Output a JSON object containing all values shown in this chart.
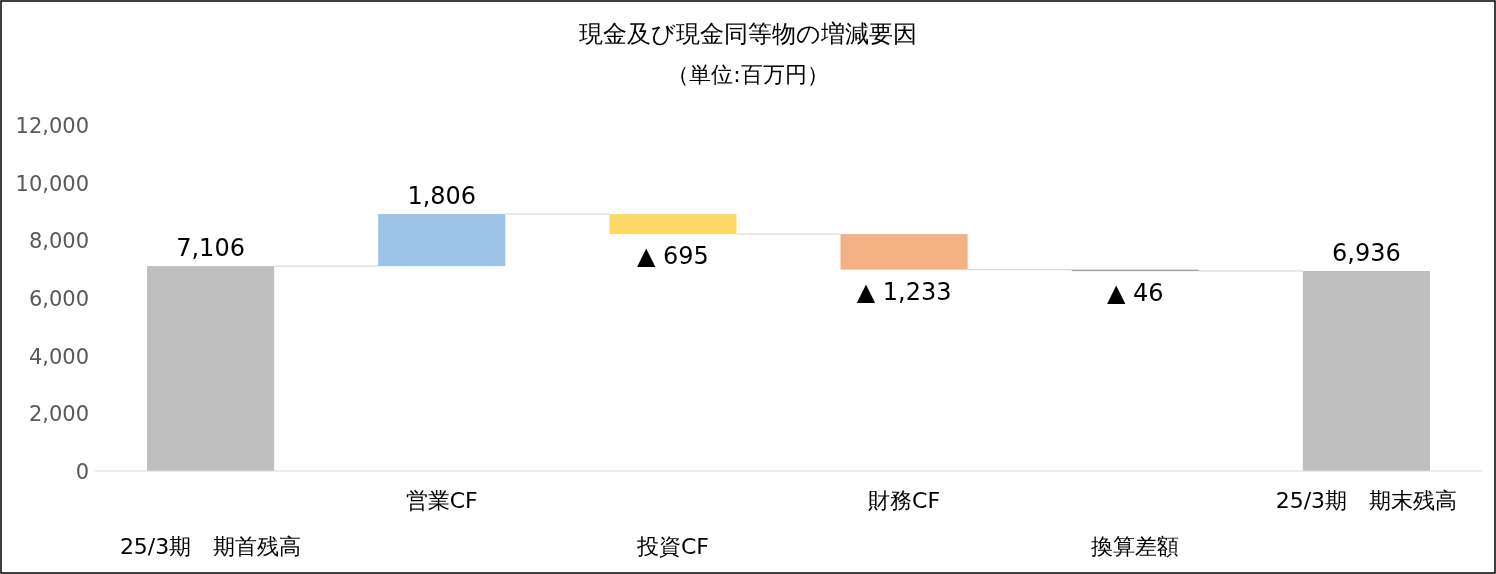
{
  "chart_data": {
    "type": "bar",
    "title": "現金及び現金同等物の増減要因",
    "subtitle": "（単位:百万円）",
    "categories": [
      "25/3期　期首残高",
      "営業CF",
      "投資CF",
      "財務CF",
      "換算差額",
      "25/3期　期末残高"
    ],
    "values": [
      7106,
      1806,
      -695,
      -1233,
      -46,
      6936
    ],
    "base": [
      0,
      7106,
      8912,
      8217,
      6984,
      0
    ],
    "colors": [
      "#bfbfbf",
      "#9dc3e6",
      "#ffd966",
      "#f4b183",
      "#a5a5a5",
      "#bfbfbf"
    ],
    "value_labels": [
      "7,106",
      "1,806",
      "▲ 695",
      "▲ 1,233",
      "▲ 46",
      "6,936"
    ],
    "ylim": [
      0,
      12000
    ],
    "yticks": [
      {
        "value": 0,
        "label": "0"
      },
      {
        "value": 2000,
        "label": "2,000"
      },
      {
        "value": 4000,
        "label": "4,000"
      },
      {
        "value": 6000,
        "label": "6,000"
      },
      {
        "value": 8000,
        "label": "8,000"
      },
      {
        "value": 10000,
        "label": "10,000"
      },
      {
        "value": 12000,
        "label": "12,000"
      }
    ]
  }
}
